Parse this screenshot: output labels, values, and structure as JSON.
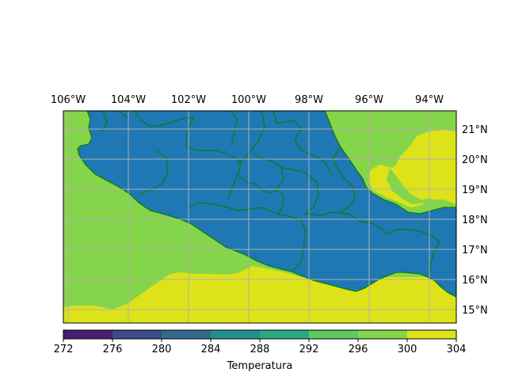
{
  "map": {
    "lon_labels": [
      "106°W",
      "104°W",
      "102°W",
      "100°W",
      "98°W",
      "96°W",
      "94°W"
    ],
    "lat_labels": [
      "21°N",
      "20°N",
      "19°N",
      "18°N",
      "17°N",
      "16°N",
      "15°N"
    ],
    "extent": {
      "lon_min": -106.2,
      "lon_max": -93.2,
      "lat_min": 14.6,
      "lat_max": 21.7
    }
  },
  "colorbar": {
    "ticks": [
      "272",
      "276",
      "280",
      "284",
      "288",
      "292",
      "296",
      "300",
      "304"
    ],
    "colors": [
      "#46085c",
      "#471f70",
      "#3e4a89",
      "#306a8e",
      "#21908d",
      "#27ab82",
      "#5ec962",
      "#85d54a",
      "#dde318"
    ],
    "label": "Temperatura"
  },
  "colors": {
    "land": "#1f77b4",
    "border": "#0b7d0b",
    "grid": "#b0b0b0",
    "band_296_300": "#85d54a",
    "band_300_304": "#dde318"
  }
}
